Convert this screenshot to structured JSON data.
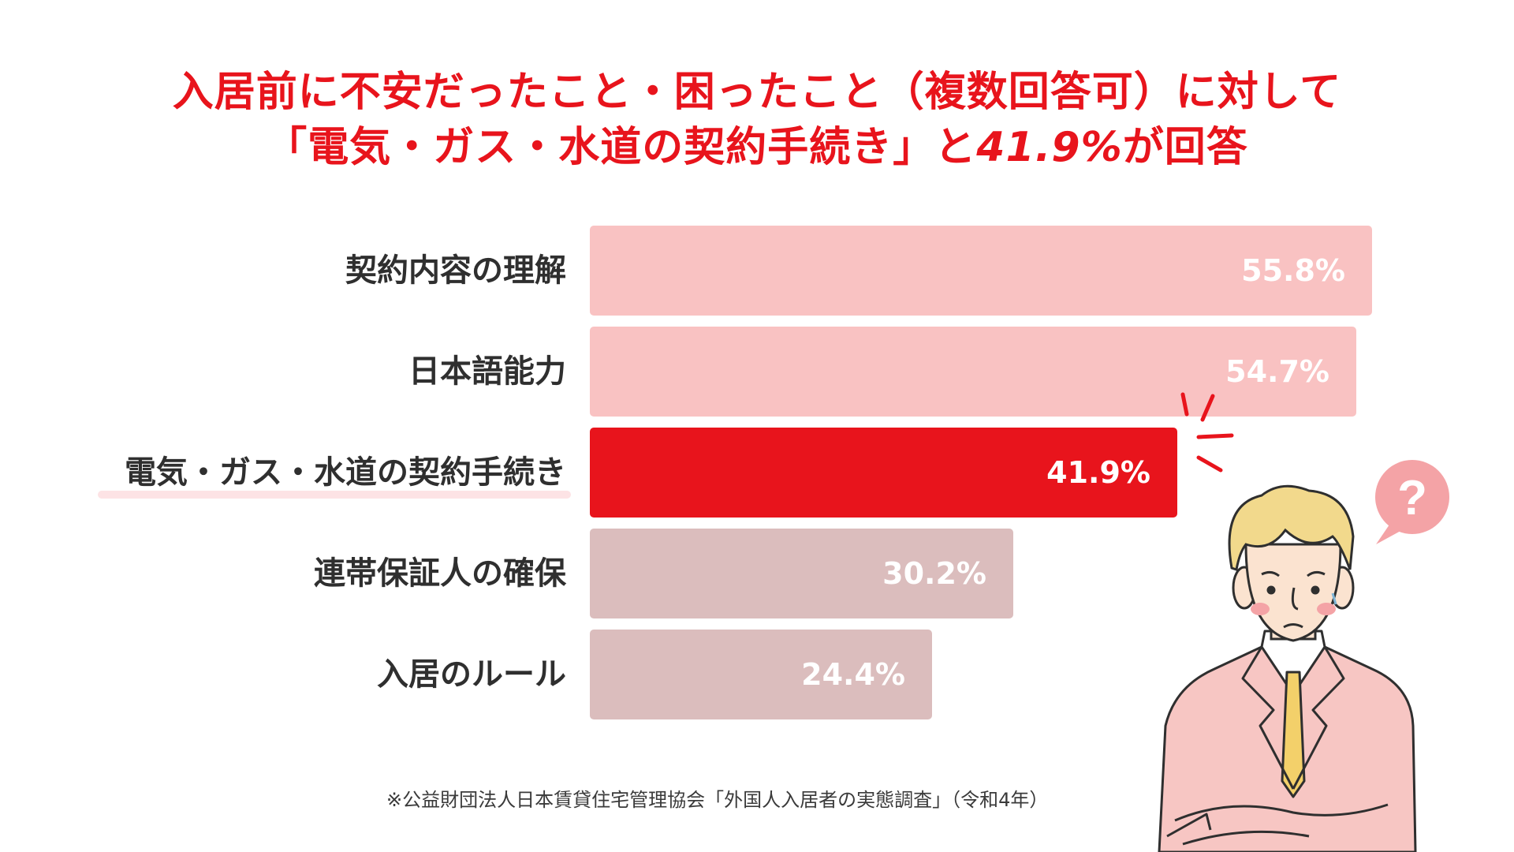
{
  "title": {
    "line1": "入居前に不安だったこと・困ったこと（複数回答可）に対して",
    "line2_prefix": "「電気・ガス・水道の契約手続き」と",
    "line2_value": "41.9%",
    "line2_suffix": "が回答"
  },
  "chart_data": {
    "type": "bar",
    "orientation": "horizontal",
    "categories": [
      "契約内容の理解",
      "日本語能力",
      "電気・ガス・水道の契約手続き",
      "連帯保証人の確保",
      "入居のルール"
    ],
    "values": [
      55.8,
      54.7,
      41.9,
      30.2,
      24.4
    ],
    "value_labels": [
      "55.8%",
      "54.7%",
      "41.9%",
      "30.2%",
      "24.4%"
    ],
    "highlight_index": 2,
    "unit": "%",
    "colors": [
      "#f9c2c2",
      "#f9c2c2",
      "#e8141c",
      "#dbbdbd",
      "#dbbdbd"
    ]
  },
  "source": "※公益財団法人日本賃貸住宅管理協会「外国人入居者の実態調査」（令和4年）",
  "bubble_text": "?",
  "colors": {
    "accent": "#e8141c",
    "bar_light": "#f9c2c2",
    "bar_muted": "#dbbdbd",
    "underline": "#fde3e5",
    "bubble": "#f4a3a6",
    "suit": "#f7c6c3",
    "hair": "#f2d98c",
    "skin": "#fbe3d0",
    "tie": "#f3d06a"
  }
}
